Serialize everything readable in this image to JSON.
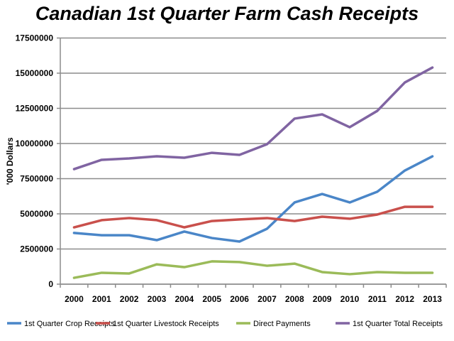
{
  "chart_data": {
    "type": "line",
    "title": "Canadian 1st Quarter Farm Cash Receipts",
    "xlabel": "",
    "ylabel": "'000 Dollars",
    "ylim": [
      0,
      17500000
    ],
    "yticks": [
      "0",
      "2500000",
      "5000000",
      "7500000",
      "10000000",
      "12500000",
      "15000000",
      "17500000"
    ],
    "grid": true,
    "legend_position": "bottom",
    "categories": [
      "2000",
      "2001",
      "2002",
      "2003",
      "2004",
      "2005",
      "2006",
      "2007",
      "2008",
      "2009",
      "2010",
      "2011",
      "2012",
      "2013"
    ],
    "series": [
      {
        "name": "1st Quarter Crop Receipts",
        "color": "#4a86c8",
        "values": [
          3640000,
          3480000,
          3480000,
          3130000,
          3740000,
          3280000,
          3030000,
          3940000,
          5810000,
          6410000,
          5810000,
          6570000,
          8080000,
          9090000
        ]
      },
      {
        "name": "1st Quarter Livestock Receipts",
        "color": "#c9504c",
        "values": [
          4040000,
          4550000,
          4700000,
          4550000,
          4040000,
          4490000,
          4600000,
          4700000,
          4490000,
          4800000,
          4650000,
          4950000,
          5500000,
          5500000
        ]
      },
      {
        "name": "Direct Payments",
        "color": "#9bbb59",
        "values": [
          450000,
          810000,
          760000,
          1410000,
          1210000,
          1620000,
          1570000,
          1310000,
          1460000,
          860000,
          710000,
          860000,
          810000,
          810000
        ]
      },
      {
        "name": "1st Quarter Total Receipts",
        "color": "#8064a2",
        "values": [
          8180000,
          8840000,
          8940000,
          9090000,
          8990000,
          9340000,
          9190000,
          9950000,
          11770000,
          12070000,
          11160000,
          12320000,
          14340000,
          15400000
        ]
      }
    ]
  }
}
